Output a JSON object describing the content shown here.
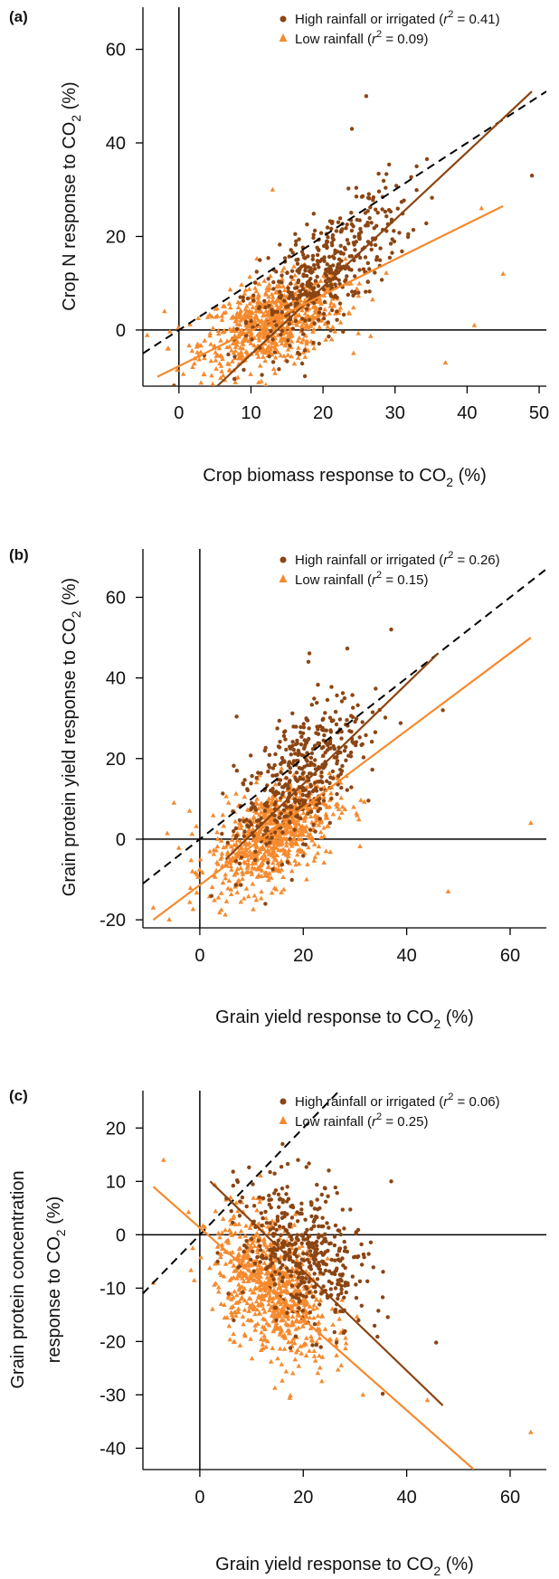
{
  "chart_data": [
    {
      "panel_label": "(a)",
      "type": "scatter",
      "xlabel": "Crop biomass response to CO",
      "xlabel_sub": "2",
      "xlabel_tail": " (%)",
      "ylabel": "Crop N response to CO",
      "ylabel_sub": "2",
      "ylabel_tail": " (%)",
      "xlim": [
        -5,
        51
      ],
      "ylim": [
        -12,
        69
      ],
      "xticks": [
        "0",
        "10",
        "20",
        "30",
        "40",
        "50"
      ],
      "xtick_values": [
        0,
        10,
        20,
        30,
        40,
        50
      ],
      "yticks": [
        "0",
        "20",
        "40",
        "60"
      ],
      "ytick_values": [
        0,
        20,
        40,
        60
      ],
      "legend": [
        {
          "name": "High rainfall or irrigated (",
          "r2": "0.41",
          "marker": "circle",
          "color": "#8b4513"
        },
        {
          "name": "Low rainfall (",
          "r2": "0.09",
          "marker": "triangle",
          "color": "#f58a2e"
        }
      ],
      "reference_line": {
        "style": "dashed",
        "label": "1:1",
        "x": [
          -5,
          51
        ],
        "y": [
          -5,
          51
        ]
      },
      "fit_lines": [
        {
          "series": "High rainfall or irrigated",
          "x": [
            5.3,
            49
          ],
          "y": [
            -12,
            51
          ]
        },
        {
          "series": "Low rainfall",
          "x": [
            -3,
            45
          ],
          "y": [
            -10,
            26.5
          ]
        }
      ],
      "series": [
        {
          "name": "High rainfall or irrigated",
          "center": [
            20,
            12
          ],
          "spread": [
            5.5,
            6
          ],
          "slope": 1.2,
          "count": 450,
          "extra_points": [
            [
              26,
              50
            ],
            [
              49,
              33
            ],
            [
              24,
              43
            ],
            [
              33,
              35
            ]
          ]
        },
        {
          "name": "Low rainfall",
          "center": [
            13,
            1.5
          ],
          "spread": [
            5,
            4.5
          ],
          "slope": 0.45,
          "count": 750,
          "extra_points": [
            [
              -2,
              4
            ],
            [
              37,
              -7
            ],
            [
              45,
              12
            ],
            [
              41,
              1
            ],
            [
              42,
              26
            ],
            [
              13,
              30
            ]
          ]
        }
      ]
    },
    {
      "panel_label": "(b)",
      "type": "scatter",
      "xlabel": "Grain yield response to CO",
      "xlabel_sub": "2",
      "xlabel_tail": " (%)",
      "ylabel": "Grain protein yield response to CO",
      "ylabel_sub": "2",
      "ylabel_tail": " (%)",
      "xlim": [
        -11,
        67
      ],
      "ylim": [
        -22,
        72
      ],
      "xticks": [
        "0",
        "20",
        "40",
        "60"
      ],
      "xtick_values": [
        0,
        20,
        40,
        60
      ],
      "yticks": [
        "-20",
        "0",
        "20",
        "40",
        "60"
      ],
      "ytick_values": [
        -20,
        0,
        20,
        40,
        60
      ],
      "legend": [
        {
          "name": "High rainfall or irrigated (",
          "r2": "0.26",
          "marker": "circle",
          "color": "#8b4513"
        },
        {
          "name": "Low rainfall (",
          "r2": "0.15",
          "marker": "triangle",
          "color": "#f58a2e"
        }
      ],
      "reference_line": {
        "style": "dashed",
        "label": "1:1",
        "x": [
          -11,
          67
        ],
        "y": [
          -11,
          67
        ]
      },
      "fit_lines": [
        {
          "series": "High rainfall or irrigated",
          "x": [
            5,
            46
          ],
          "y": [
            -5,
            46
          ]
        },
        {
          "series": "Low rainfall",
          "x": [
            -9,
            64
          ],
          "y": [
            -20,
            50
          ]
        }
      ],
      "series": [
        {
          "name": "High rainfall or irrigated",
          "center": [
            19,
            15
          ],
          "spread": [
            6,
            8
          ],
          "slope": 1.1,
          "count": 450,
          "extra_points": [
            [
              37,
              52
            ],
            [
              21,
              44
            ],
            [
              47,
              32
            ]
          ]
        },
        {
          "name": "Low rainfall",
          "center": [
            14,
            1
          ],
          "spread": [
            6,
            6
          ],
          "slope": 0.6,
          "count": 750,
          "extra_points": [
            [
              -9,
              -17
            ],
            [
              -5,
              9
            ],
            [
              48,
              -13
            ],
            [
              64,
              4
            ],
            [
              -2,
              7
            ]
          ]
        }
      ]
    },
    {
      "panel_label": "(c)",
      "type": "scatter",
      "xlabel": "Grain yield response to CO",
      "xlabel_sub": "2",
      "xlabel_tail": " (%)",
      "ylabel_line1": "Grain protein concentration",
      "ylabel": "response to CO",
      "ylabel_sub": "2",
      "ylabel_tail": " (%)",
      "xlim": [
        -11,
        67
      ],
      "ylim": [
        -44,
        27
      ],
      "xticks": [
        "0",
        "20",
        "40",
        "60"
      ],
      "xtick_values": [
        0,
        20,
        40,
        60
      ],
      "yticks": [
        "-40",
        "-30",
        "-20",
        "-10",
        "0",
        "10",
        "20"
      ],
      "ytick_values": [
        -40,
        -30,
        -20,
        -10,
        0,
        10,
        20
      ],
      "legend": [
        {
          "name": "High rainfall or irrigated (",
          "r2": "0.06",
          "marker": "circle",
          "color": "#8b4513"
        },
        {
          "name": "Low rainfall (",
          "r2": "0.25",
          "marker": "triangle",
          "color": "#f58a2e"
        }
      ],
      "reference_line": {
        "style": "dashed",
        "label": "1:1",
        "x": [
          -11,
          27
        ],
        "y": [
          -11,
          27
        ]
      },
      "fit_lines": [
        {
          "series": "High rainfall or irrigated",
          "x": [
            2,
            47
          ],
          "y": [
            10,
            -32
          ]
        },
        {
          "series": "Low rainfall",
          "x": [
            -9,
            53
          ],
          "y": [
            9,
            -44
          ]
        }
      ],
      "series": [
        {
          "name": "High rainfall or irrigated",
          "center": [
            20,
            -4
          ],
          "spread": [
            6,
            6.5
          ],
          "slope": -0.4,
          "count": 450,
          "extra_points": [
            [
              16,
              17
            ],
            [
              37,
              10
            ],
            [
              19,
              14
            ]
          ]
        },
        {
          "name": "Low rainfall",
          "center": [
            14,
            -10
          ],
          "spread": [
            5.5,
            6
          ],
          "slope": -0.55,
          "count": 750,
          "extra_points": [
            [
              -7,
              14
            ],
            [
              64,
              -37
            ],
            [
              -9,
              -9
            ],
            [
              44,
              -31
            ]
          ]
        }
      ]
    }
  ]
}
